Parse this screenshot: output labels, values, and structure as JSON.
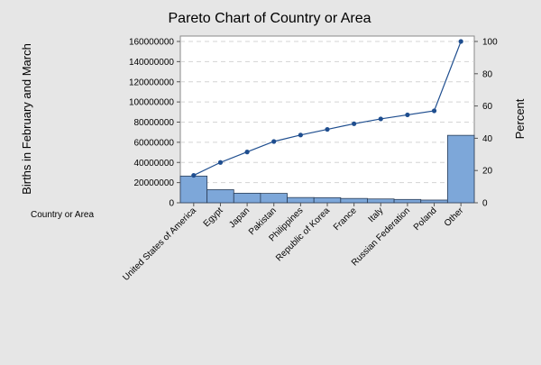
{
  "chart_data": {
    "type": "bar",
    "title": "Pareto Chart of Country or Area",
    "ylabel": "Births in February and March",
    "y2label": "Percent",
    "xfield_label": "Country or Area",
    "categories": [
      "United States of America",
      "Egypt",
      "Japan",
      "Pakistan",
      "Philippines",
      "Republic of Korea",
      "France",
      "Italy",
      "Russian Federation",
      "Poland",
      "Other"
    ],
    "series": [
      {
        "name": "Births in February and March",
        "type": "bar",
        "axis": "left",
        "values": [
          26500000,
          13000000,
          9500000,
          9300000,
          5200000,
          5100000,
          4300000,
          3800000,
          3300000,
          2700000,
          66900000
        ]
      },
      {
        "name": "Percent",
        "type": "line",
        "axis": "right",
        "values": [
          17,
          25,
          31.5,
          38,
          42,
          45.5,
          49,
          52,
          54.5,
          57,
          100
        ]
      }
    ],
    "ylim": [
      0,
      160000000
    ],
    "yticks": [
      "0",
      "20000000",
      "40000000",
      "60000000",
      "80000000",
      "100000000",
      "120000000",
      "140000000",
      "160000000"
    ],
    "y2lim": [
      0,
      100
    ],
    "y2ticks": [
      "0",
      "20",
      "40",
      "60",
      "80",
      "100"
    ],
    "grid": "horizontal dashed",
    "colors": {
      "bar_fill": "#7da7d9",
      "bar_stroke": "#2a3d57",
      "line": "#1f4e8f",
      "plot_bg": "#ffffff",
      "page_bg": "#e6e6e6",
      "grid": "#d4d4d4"
    }
  }
}
